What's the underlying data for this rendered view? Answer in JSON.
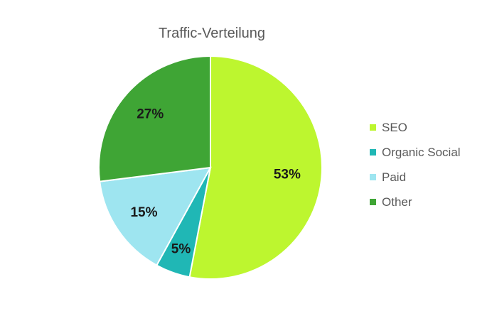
{
  "chart_data": {
    "type": "pie",
    "title": "Traffic-Verteilung",
    "categories": [
      "SEO",
      "Organic Social",
      "Paid",
      "Other"
    ],
    "values": [
      53,
      5,
      15,
      27
    ],
    "value_labels": [
      "53%",
      "5%",
      "15%",
      "27%"
    ],
    "colors": [
      "#bdf62f",
      "#20b7b5",
      "#9ee5f0",
      "#3fa535"
    ],
    "legend_position": "right",
    "start_angle": "top, clockwise"
  }
}
